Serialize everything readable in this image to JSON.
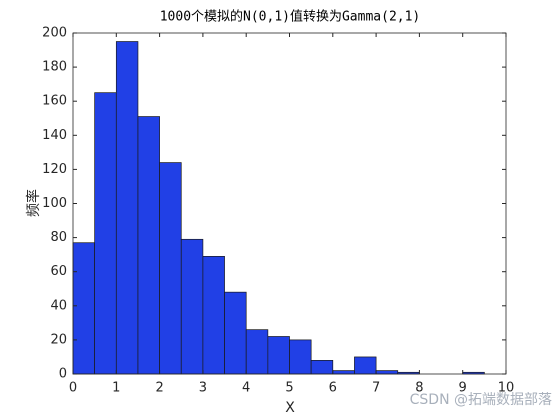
{
  "chart_data": {
    "type": "histogram",
    "title": "1000个模拟的N(0,1)值转换为Gamma(2,1)",
    "xlabel": "X",
    "ylabel": "频率",
    "watermark": "CSDN @拓端数据部落",
    "bins": [
      0,
      0.5,
      1,
      1.5,
      2,
      2.5,
      3,
      3.5,
      4,
      4.5,
      5,
      5.5,
      6,
      6.5,
      7,
      7.5,
      8,
      8.5,
      9,
      9.5,
      10
    ],
    "values": [
      77,
      165,
      195,
      151,
      124,
      79,
      69,
      48,
      26,
      22,
      20,
      8,
      2,
      10,
      2,
      1,
      0,
      0,
      1,
      0
    ],
    "color": "#2140e6",
    "xlim": [
      0,
      10
    ],
    "xticks": [
      0,
      1,
      2,
      3,
      4,
      5,
      6,
      7,
      8,
      9,
      10
    ],
    "ylim": [
      0,
      200
    ],
    "yticks": [
      0,
      20,
      40,
      60,
      80,
      100,
      120,
      140,
      160,
      180,
      200
    ],
    "grid": false
  }
}
